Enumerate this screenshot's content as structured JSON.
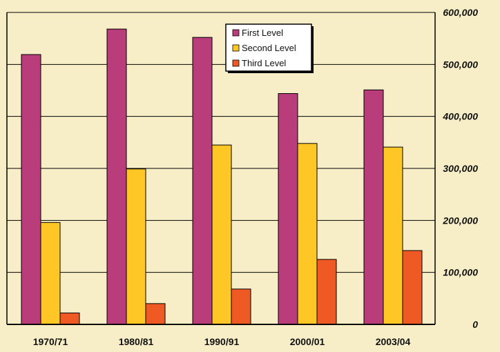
{
  "chart_data": {
    "type": "bar",
    "title": "",
    "xlabel": "",
    "ylabel": "",
    "categories": [
      "1970/71",
      "1980/81",
      "1990/91",
      "2000/01",
      "2003/04"
    ],
    "series": [
      {
        "name": "First Level",
        "color": "#b83d7a",
        "values": [
          519000,
          568000,
          552000,
          444000,
          451000
        ]
      },
      {
        "name": "Second Level",
        "color": "#ffc726",
        "values": [
          196000,
          299000,
          345000,
          348000,
          341000
        ]
      },
      {
        "name": "Third Level",
        "color": "#ef5a24",
        "values": [
          22000,
          40000,
          68000,
          125000,
          142000
        ]
      }
    ],
    "ylim": [
      0,
      600000
    ],
    "yticks": [
      {
        "value": 0,
        "label": "0"
      },
      {
        "value": 100000,
        "label": "100,000"
      },
      {
        "value": 200000,
        "label": "200,000"
      },
      {
        "value": 300000,
        "label": "300,000"
      },
      {
        "value": 400000,
        "label": "400,000"
      },
      {
        "value": 500000,
        "label": "500,000"
      },
      {
        "value": 600000,
        "label": "600,000"
      }
    ],
    "y_axis_side": "right",
    "grid": true,
    "legend_position": "top-center",
    "background_color": "#f7eec7",
    "grid_color": "#000000"
  }
}
